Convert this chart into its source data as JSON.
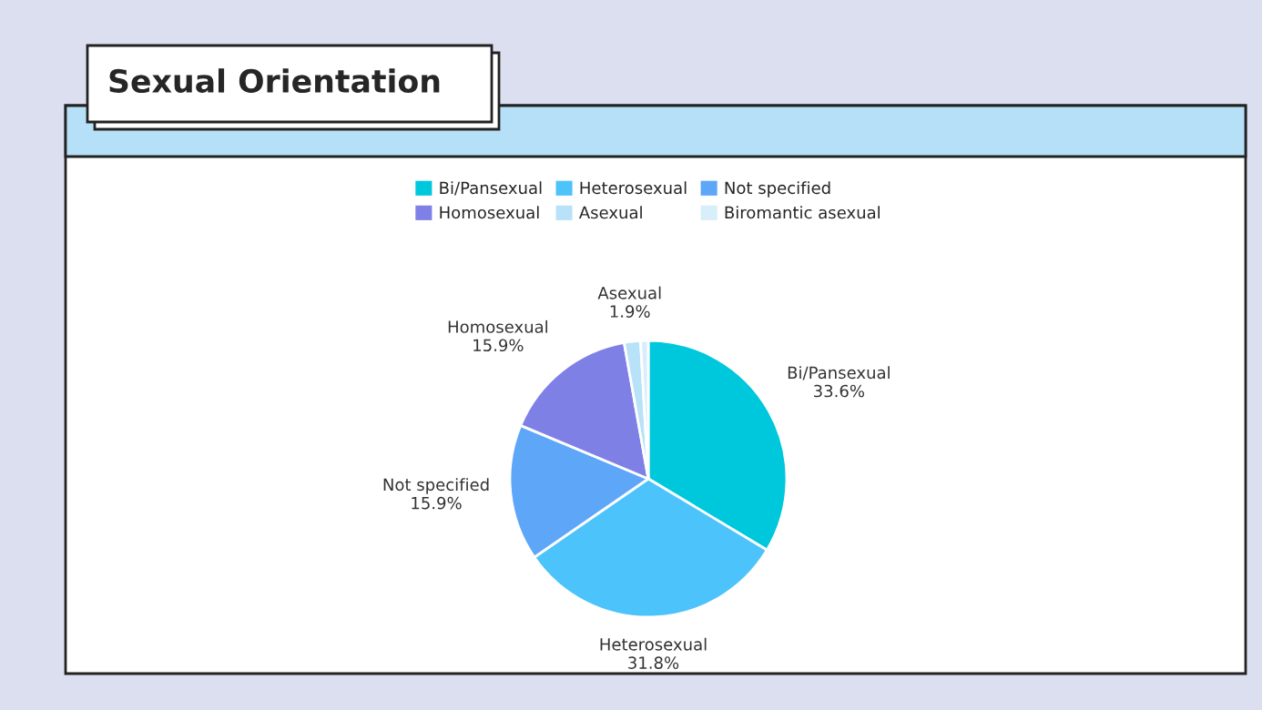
{
  "chart_data": {
    "type": "pie",
    "title": "Sexual Orientation",
    "categories": [
      "Bi/Pansexual",
      "Heterosexual",
      "Not specified",
      "Homosexual",
      "Asexual",
      "Biromantic asexual"
    ],
    "values": [
      33.6,
      31.8,
      15.9,
      15.9,
      1.9,
      0.9
    ],
    "colors": [
      "#00c8dc",
      "#4cc3fb",
      "#5ea6f8",
      "#7f80e6",
      "#b8e2f8",
      "#d8eefa"
    ],
    "value_labels": [
      "33.6%",
      "31.8%",
      "15.9%",
      "15.9%",
      "1.9%",
      null
    ],
    "legend": "top"
  }
}
